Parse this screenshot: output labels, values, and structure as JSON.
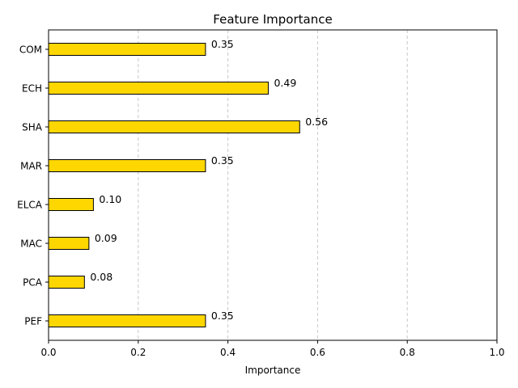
{
  "chart_data": {
    "type": "bar",
    "orientation": "horizontal",
    "title": "Feature Importance",
    "xlabel": "Importance",
    "ylabel": "",
    "categories": [
      "COM",
      "ECH",
      "SHA",
      "MAR",
      "ELCA",
      "MAC",
      "PCA",
      "PEF"
    ],
    "values": [
      0.35,
      0.49,
      0.56,
      0.35,
      0.1,
      0.09,
      0.08,
      0.35
    ],
    "value_labels": [
      "0.35",
      "0.49",
      "0.56",
      "0.35",
      "0.10",
      "0.09",
      "0.08",
      "0.35"
    ],
    "xlim": [
      0,
      1.0
    ],
    "xticks": [
      0.0,
      0.2,
      0.4,
      0.6,
      0.8,
      1.0
    ],
    "xtick_labels": [
      "0.0",
      "0.2",
      "0.4",
      "0.6",
      "0.8",
      "1.0"
    ],
    "grid": "x-axis dashed",
    "bar_color": "#FFD700",
    "bar_edge_color": "#000000"
  }
}
